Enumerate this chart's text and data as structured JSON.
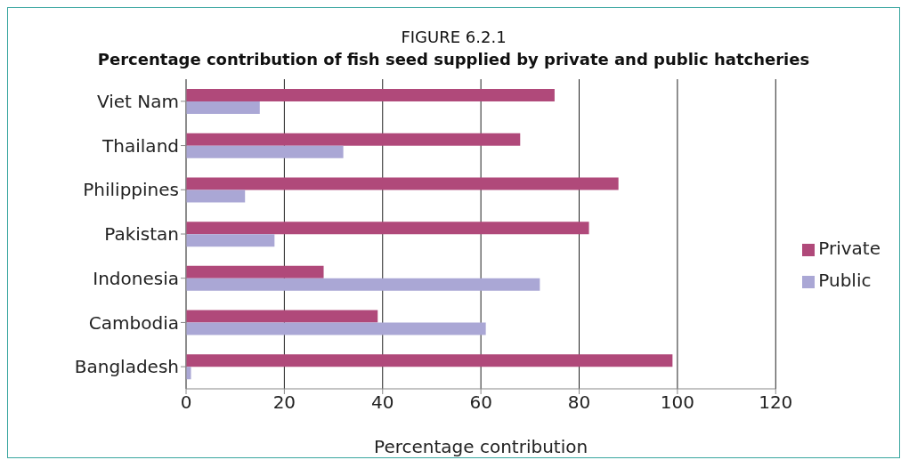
{
  "chart_data": {
    "type": "bar",
    "orientation": "horizontal",
    "title": "FIGURE 6.2.1",
    "subtitle": "Percentage contribution of fish seed supplied by private and public hatcheries",
    "xlabel": "Percentage contribution",
    "categories": [
      "Viet Nam",
      "Thailand",
      "Philippines",
      "Pakistan",
      "Indonesia",
      "Cambodia",
      "Bangladesh"
    ],
    "series": [
      {
        "name": "Private",
        "color": "#b0497a",
        "values": [
          75,
          68,
          88,
          82,
          28,
          39,
          99
        ]
      },
      {
        "name": "Public",
        "color": "#aaa7d5",
        "values": [
          15,
          32,
          12,
          18,
          72,
          61,
          1
        ]
      }
    ],
    "xlim": [
      0,
      120
    ],
    "xticks": [
      0,
      20,
      40,
      60,
      80,
      100,
      120
    ],
    "grid": "x",
    "legend": "right"
  }
}
